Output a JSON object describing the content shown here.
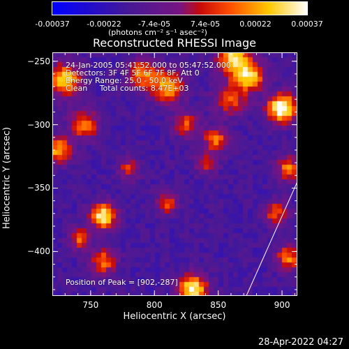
{
  "colorbar": {
    "ticks": [
      "-0.00037",
      "-0.00022",
      "-7.4e-05",
      "7.4e-05",
      "0.00022",
      "0.00037"
    ],
    "units": "(photons cm⁻² s⁻¹ asec⁻²)",
    "range": [
      -0.00037,
      0.00037
    ]
  },
  "title": "Reconstructed RHESSI Image",
  "annotations": {
    "time_range": "24-Jan-2005 05:41:52.000 to 05:47:52.000",
    "detectors": "Detectors: 3F 4F 5F 6F 7F 8F, Att 0",
    "energy_range": "Energy Range: 25.0 - 50.0 keV",
    "method_counts": "Clean     Total counts: 8.47E+03",
    "peak": "Position of Peak = [902,-287]"
  },
  "axes": {
    "xlabel": "Heliocentric X (arcsec)",
    "ylabel": "Heliocentric Y (arcsec)",
    "xticks": [
      "750",
      "800",
      "850",
      "900"
    ],
    "yticks": [
      "-250",
      "-300",
      "-350",
      "-400"
    ],
    "xlim": [
      720,
      912
    ],
    "ylim": [
      -435,
      -243
    ]
  },
  "datestamp": "28-Apr-2022 04:27",
  "image": {
    "colormap": "purple-red-yellow-white",
    "blobs": [
      {
        "x": 900,
        "y": -287,
        "amp": 1.0,
        "s": 8
      },
      {
        "x": 862,
        "y": -248,
        "amp": 0.8,
        "s": 9
      },
      {
        "x": 875,
        "y": -262,
        "amp": 0.75,
        "s": 8
      },
      {
        "x": 810,
        "y": -270,
        "amp": 0.7,
        "s": 9
      },
      {
        "x": 790,
        "y": -260,
        "amp": 0.6,
        "s": 8
      },
      {
        "x": 730,
        "y": -265,
        "amp": 0.8,
        "s": 9
      },
      {
        "x": 745,
        "y": -300,
        "amp": 0.6,
        "s": 8
      },
      {
        "x": 725,
        "y": -320,
        "amp": 0.7,
        "s": 7
      },
      {
        "x": 760,
        "y": -372,
        "amp": 0.9,
        "s": 7
      },
      {
        "x": 810,
        "y": -362,
        "amp": 0.5,
        "s": 6
      },
      {
        "x": 848,
        "y": -312,
        "amp": 0.55,
        "s": 7
      },
      {
        "x": 840,
        "y": -330,
        "amp": 0.45,
        "s": 6
      },
      {
        "x": 830,
        "y": -430,
        "amp": 0.9,
        "s": 8
      },
      {
        "x": 760,
        "y": -408,
        "amp": 0.6,
        "s": 7
      },
      {
        "x": 742,
        "y": -390,
        "amp": 0.55,
        "s": 6
      },
      {
        "x": 895,
        "y": -370,
        "amp": 0.5,
        "s": 7
      },
      {
        "x": 905,
        "y": -405,
        "amp": 0.6,
        "s": 7
      },
      {
        "x": 905,
        "y": -335,
        "amp": 0.6,
        "s": 7
      },
      {
        "x": 860,
        "y": -280,
        "amp": 0.5,
        "s": 9
      },
      {
        "x": 780,
        "y": -335,
        "amp": 0.45,
        "s": 6
      },
      {
        "x": 825,
        "y": -300,
        "amp": 0.5,
        "s": 7
      }
    ],
    "limb_line": [
      [
        872,
        -435
      ],
      [
        912,
        -345
      ]
    ]
  }
}
